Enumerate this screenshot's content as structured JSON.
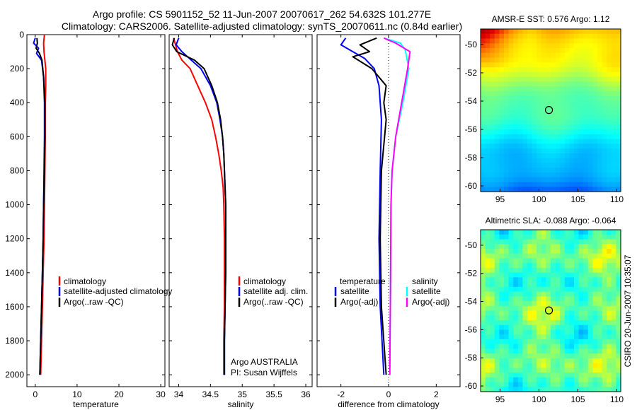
{
  "header": {
    "line1": "Argo profile: CS 5901152_52 11-Jun-2007 20070617_262 54.632S 101.277E",
    "line2": "Climatology: CARS2006. Satellite-adjusted climatology: synTS_20070611.nc (0.84d earlier)"
  },
  "side_label": "CSIRO 20-Jun-2007 10:35:07",
  "colors": {
    "climatology": "#ff0000",
    "satellite": "#0000ff",
    "argo": "#000000",
    "cyan": "#00ffff",
    "magenta": "#ff00ff"
  },
  "chart_data": [
    {
      "type": "line",
      "id": "temperature",
      "xlabel": "temperature",
      "xlim": [
        -2,
        31
      ],
      "ylim": [
        2070,
        0
      ],
      "y_reversed": true,
      "xticks": [
        0,
        10,
        20,
        30
      ],
      "yticks": [
        0,
        200,
        400,
        600,
        800,
        1000,
        1200,
        1400,
        1600,
        1800,
        2000
      ],
      "legend": {
        "entries": [
          "climatology",
          "satellite-adjusted climatology",
          "Argo(..raw -QC)"
        ]
      },
      "series": [
        {
          "name": "climatology",
          "color": "#ff0000",
          "points": [
            [
              2.2,
              0
            ],
            [
              2.0,
              50
            ],
            [
              2.1,
              100
            ],
            [
              2.3,
              150
            ],
            [
              2.5,
              200
            ],
            [
              2.5,
              300
            ],
            [
              2.4,
              400
            ],
            [
              2.4,
              600
            ],
            [
              2.3,
              800
            ],
            [
              2.2,
              1000
            ],
            [
              2.1,
              1200
            ],
            [
              1.9,
              1400
            ],
            [
              1.7,
              1600
            ],
            [
              1.5,
              1800
            ],
            [
              1.3,
              2000
            ]
          ]
        },
        {
          "name": "satellite-adjusted climatology",
          "color": "#0000ff",
          "points": [
            [
              0.0,
              20
            ],
            [
              -0.4,
              50
            ],
            [
              0.8,
              80
            ],
            [
              0.3,
              110
            ],
            [
              1.5,
              150
            ],
            [
              2.0,
              250
            ],
            [
              2.2,
              400
            ],
            [
              2.2,
              600
            ],
            [
              2.1,
              800
            ],
            [
              2.0,
              1000
            ],
            [
              1.9,
              1200
            ],
            [
              1.7,
              1400
            ],
            [
              1.5,
              1600
            ],
            [
              1.3,
              1800
            ],
            [
              1.1,
              2000
            ]
          ]
        },
        {
          "name": "Argo(..raw -QC)",
          "color": "#000000",
          "points": [
            [
              0.4,
              20
            ],
            [
              0.5,
              50
            ],
            [
              0.2,
              80
            ],
            [
              1.0,
              110
            ],
            [
              1.6,
              150
            ],
            [
              2.0,
              250
            ],
            [
              2.3,
              400
            ],
            [
              2.3,
              600
            ],
            [
              2.2,
              800
            ],
            [
              2.0,
              1000
            ],
            [
              1.9,
              1200
            ],
            [
              1.7,
              1400
            ],
            [
              1.5,
              1600
            ],
            [
              1.3,
              1800
            ],
            [
              1.1,
              2000
            ]
          ]
        }
      ]
    },
    {
      "type": "line",
      "id": "salinity",
      "xlabel": "salinity",
      "xlim": [
        33.85,
        36.1
      ],
      "ylim": [
        2070,
        0
      ],
      "y_reversed": true,
      "xticks": [
        34,
        34.5,
        35,
        35.5,
        36
      ],
      "legend": {
        "entries": [
          "climatology",
          "satellite adj. clim.",
          "Argo(..raw -QC)"
        ]
      },
      "annotation": [
        "Argo AUSTRALIA",
        "PI: Susan Wijffels"
      ],
      "series": [
        {
          "name": "climatology",
          "color": "#ff0000",
          "points": [
            [
              33.92,
              20
            ],
            [
              33.95,
              60
            ],
            [
              33.98,
              100
            ],
            [
              34.05,
              150
            ],
            [
              34.18,
              200
            ],
            [
              34.3,
              300
            ],
            [
              34.42,
              400
            ],
            [
              34.52,
              500
            ],
            [
              34.58,
              600
            ],
            [
              34.63,
              700
            ],
            [
              34.67,
              800
            ],
            [
              34.7,
              900
            ],
            [
              34.71,
              1000
            ],
            [
              34.72,
              1200
            ],
            [
              34.72,
              1400
            ],
            [
              34.72,
              1600
            ],
            [
              34.71,
              1800
            ],
            [
              34.71,
              2000
            ]
          ]
        },
        {
          "name": "satellite adj. clim.",
          "color": "#0000ff",
          "points": [
            [
              34.0,
              20
            ],
            [
              33.96,
              60
            ],
            [
              34.05,
              100
            ],
            [
              34.2,
              150
            ],
            [
              34.35,
              200
            ],
            [
              34.5,
              300
            ],
            [
              34.6,
              400
            ],
            [
              34.65,
              500
            ],
            [
              34.69,
              600
            ],
            [
              34.71,
              700
            ],
            [
              34.72,
              800
            ],
            [
              34.73,
              900
            ],
            [
              34.74,
              1000
            ],
            [
              34.74,
              1200
            ],
            [
              34.74,
              1400
            ],
            [
              34.73,
              1600
            ],
            [
              34.72,
              1800
            ],
            [
              34.72,
              2000
            ]
          ]
        },
        {
          "name": "Argo(..raw -QC)",
          "color": "#000000",
          "points": [
            [
              33.93,
              20
            ],
            [
              33.9,
              60
            ],
            [
              33.97,
              100
            ],
            [
              34.25,
              150
            ],
            [
              34.4,
              200
            ],
            [
              34.52,
              300
            ],
            [
              34.61,
              400
            ],
            [
              34.66,
              500
            ],
            [
              34.69,
              600
            ],
            [
              34.71,
              700
            ],
            [
              34.72,
              800
            ],
            [
              34.73,
              900
            ],
            [
              34.74,
              1000
            ],
            [
              34.74,
              1200
            ],
            [
              34.74,
              1400
            ],
            [
              34.73,
              1600
            ],
            [
              34.72,
              1800
            ],
            [
              34.72,
              2000
            ]
          ]
        }
      ]
    },
    {
      "type": "line",
      "id": "difference",
      "xlabel": "difference from climatology",
      "xlim": [
        -3.0,
        3.0
      ],
      "ylim": [
        2070,
        0
      ],
      "y_reversed": true,
      "xticks": [
        -2,
        0,
        2
      ],
      "zero_line": true,
      "legend": {
        "left_title": "temperature",
        "right_title": "salinity",
        "left": [
          "satellite",
          "Argo(-adj)"
        ],
        "right": [
          "satellite",
          "Argo(-adj)"
        ]
      },
      "series": [
        {
          "name": "temperature satellite",
          "color": "#0000ff",
          "points": [
            [
              -1.8,
              20
            ],
            [
              -2.0,
              60
            ],
            [
              -1.5,
              100
            ],
            [
              -1.0,
              140
            ],
            [
              -0.6,
              200
            ],
            [
              -0.4,
              300
            ],
            [
              -0.3,
              500
            ],
            [
              -0.35,
              800
            ],
            [
              -0.4,
              1200
            ],
            [
              -0.35,
              1600
            ],
            [
              -0.2,
              2000
            ]
          ]
        },
        {
          "name": "temperature Argo(-adj)",
          "color": "#000000",
          "points": [
            [
              -0.5,
              20
            ],
            [
              -1.2,
              60
            ],
            [
              -0.8,
              100
            ],
            [
              -1.5,
              130
            ],
            [
              -0.7,
              200
            ],
            [
              -0.1,
              300
            ],
            [
              -0.2,
              400
            ],
            [
              -0.1,
              500
            ],
            [
              -0.3,
              800
            ],
            [
              -0.35,
              1200
            ],
            [
              -0.3,
              1600
            ],
            [
              -0.1,
              2000
            ]
          ]
        },
        {
          "name": "salinity satellite",
          "color": "#00ffff",
          "points": [
            [
              -0.2,
              20
            ],
            [
              0.5,
              50
            ],
            [
              0.7,
              90
            ],
            [
              0.85,
              200
            ],
            [
              0.6,
              400
            ],
            [
              0.3,
              600
            ],
            [
              0.15,
              800
            ],
            [
              0.1,
              1000
            ],
            [
              0.08,
              1500
            ],
            [
              0.05,
              2000
            ]
          ]
        },
        {
          "name": "salinity Argo(-adj)",
          "color": "#ff00ff",
          "points": [
            [
              -0.2,
              20
            ],
            [
              0.3,
              50
            ],
            [
              0.9,
              100
            ],
            [
              0.8,
              200
            ],
            [
              0.55,
              400
            ],
            [
              0.3,
              600
            ],
            [
              0.15,
              800
            ],
            [
              0.1,
              1000
            ],
            [
              0.08,
              1500
            ],
            [
              0.05,
              2000
            ]
          ]
        }
      ]
    },
    {
      "type": "heatmap",
      "id": "sst-map",
      "title": "AMSR-E SST: 0.576 Argo: 1.12",
      "xlim": [
        92.5,
        110.5
      ],
      "ylim": [
        -60.4,
        -48.9
      ],
      "xticks": [
        95,
        100,
        105,
        110
      ],
      "yticks": [
        -50,
        -52,
        -54,
        -56,
        -58,
        -60
      ],
      "marker": {
        "lon": 101.277,
        "lat": -54.632
      }
    },
    {
      "type": "heatmap",
      "id": "sla-map",
      "title": "Altimetric SLA: -0.088 Argo: -0.064",
      "xlim": [
        92.5,
        110.5
      ],
      "ylim": [
        -60.4,
        -48.9
      ],
      "xticks": [
        95,
        100,
        105,
        110
      ],
      "yticks": [
        -50,
        -52,
        -54,
        -56,
        -58,
        -60
      ],
      "marker": {
        "lon": 101.277,
        "lat": -54.632
      }
    }
  ]
}
